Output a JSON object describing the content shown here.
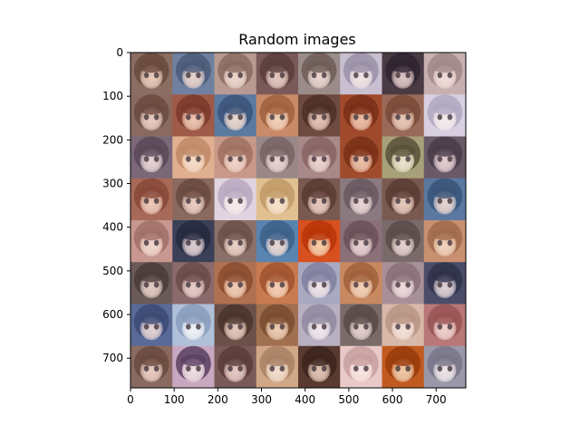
{
  "chart_data": {
    "type": "heatmap",
    "title": "Random images",
    "xlabel": "",
    "ylabel": "",
    "xlim": [
      0,
      768
    ],
    "ylim": [
      768,
      0
    ],
    "xticks": [
      0,
      100,
      200,
      300,
      400,
      500,
      600,
      700
    ],
    "yticks": [
      0,
      100,
      200,
      300,
      400,
      500,
      600,
      700
    ],
    "grid": false,
    "tile_size": 96,
    "rows": 8,
    "cols": 8,
    "tiles": [
      [
        {
          "bg": "#8a6e62",
          "hair": "#6a4a3e",
          "skin": "#e8c8b8"
        },
        {
          "bg": "#6f80a0",
          "hair": "#4c5a78",
          "skin": "#e6d2cc"
        },
        {
          "bg": "#b89a92",
          "hair": "#8a6a60",
          "skin": "#ecd6cc"
        },
        {
          "bg": "#7a5a58",
          "hair": "#5a3e3c",
          "skin": "#e4c8c0"
        },
        {
          "bg": "#9a8c88",
          "hair": "#6e5c58",
          "skin": "#e8d4cc"
        },
        {
          "bg": "#c8c0d0",
          "hair": "#9a90a8",
          "skin": "#f0e4e4"
        },
        {
          "bg": "#4a3a44",
          "hair": "#2e2430",
          "skin": "#dcc4c4"
        },
        {
          "bg": "#c8b0b0",
          "hair": "#a08888",
          "skin": "#f0dcd8"
        }
      ],
      [
        {
          "bg": "#8a6a60",
          "hair": "#6a4a40",
          "skin": "#e8ccc0"
        },
        {
          "bg": "#a05a48",
          "hair": "#7a3a2c",
          "skin": "#ecc4b0"
        },
        {
          "bg": "#5a7aa0",
          "hair": "#3c5478",
          "skin": "#ead8d0"
        },
        {
          "bg": "#c88a68",
          "hair": "#a0603e",
          "skin": "#f0d0b8"
        },
        {
          "bg": "#6e4a40",
          "hair": "#4e3028",
          "skin": "#e4c4b4"
        },
        {
          "bg": "#a04a2c",
          "hair": "#7a2e18",
          "skin": "#ecc0a8"
        },
        {
          "bg": "#9a6a58",
          "hair": "#7a4a3a",
          "skin": "#e8c8b8"
        },
        {
          "bg": "#d8d0e0",
          "hair": "#b0a8c0",
          "skin": "#f4ecec"
        }
      ],
      [
        {
          "bg": "#7a6878",
          "hair": "#5a4858",
          "skin": "#e6d2d2"
        },
        {
          "bg": "#e0b090",
          "hair": "#c08a68",
          "skin": "#f4dcc8"
        },
        {
          "bg": "#c89888",
          "hair": "#a07060",
          "skin": "#f0d4c8"
        },
        {
          "bg": "#9a8888",
          "hair": "#786464",
          "skin": "#e8d4d0"
        },
        {
          "bg": "#a88888",
          "hair": "#886464",
          "skin": "#ecd4d0"
        },
        {
          "bg": "#a04c2c",
          "hair": "#7a3018",
          "skin": "#ecc0a8"
        },
        {
          "bg": "#a8a078",
          "hair": "#58503a",
          "skin": "#ece4cc"
        },
        {
          "bg": "#6a5a68",
          "hair": "#4a3c4a",
          "skin": "#e2ccd0"
        }
      ],
      [
        {
          "bg": "#a86a58",
          "hair": "#884838",
          "skin": "#ecc8b8"
        },
        {
          "bg": "#8a6a60",
          "hair": "#6a4a40",
          "skin": "#e8ccc0"
        },
        {
          "bg": "#e0d4e0",
          "hair": "#b8a8c0",
          "skin": "#f6ecec"
        },
        {
          "bg": "#e0c090",
          "hair": "#c09a68",
          "skin": "#f6e2cc"
        },
        {
          "bg": "#7a5a50",
          "hair": "#5a3c34",
          "skin": "#e6c8bc"
        },
        {
          "bg": "#8a7a80",
          "hair": "#6a5860",
          "skin": "#e8d4d4"
        },
        {
          "bg": "#7a5a50",
          "hair": "#5a3c34",
          "skin": "#e6c8bc"
        },
        {
          "bg": "#5a78a0",
          "hair": "#3a5478",
          "skin": "#e6d4d0"
        }
      ],
      [
        {
          "bg": "#c89890",
          "hair": "#a07068",
          "skin": "#f0d6cc"
        },
        {
          "bg": "#3a4058",
          "hair": "#262a3e",
          "skin": "#dcccd0"
        },
        {
          "bg": "#8a7068",
          "hair": "#6a5048",
          "skin": "#e8d0c4"
        },
        {
          "bg": "#5a84b0",
          "hair": "#3c6088",
          "skin": "#e6d8d4"
        },
        {
          "bg": "#d85020",
          "hair": "#b83408",
          "skin": "#f4cca8"
        },
        {
          "bg": "#8a7078",
          "hair": "#6a5058",
          "skin": "#e6d0d0"
        },
        {
          "bg": "#7a6a6a",
          "hair": "#5a4a4a",
          "skin": "#e4d0cc"
        },
        {
          "bg": "#c89070",
          "hair": "#a06a4c",
          "skin": "#f0d2bc"
        }
      ],
      [
        {
          "bg": "#6a5a58",
          "hair": "#4a3c3a",
          "skin": "#e2ccc4"
        },
        {
          "bg": "#8a6a6a",
          "hair": "#6a4a4a",
          "skin": "#e8ccc8"
        },
        {
          "bg": "#b07050",
          "hair": "#8a4c30",
          "skin": "#f0ccb4"
        },
        {
          "bg": "#c87a50",
          "hair": "#a05430",
          "skin": "#f2ceb4"
        },
        {
          "bg": "#a8a8c0",
          "hair": "#8080a0",
          "skin": "#eee4e8"
        },
        {
          "bg": "#c88860",
          "hair": "#a0623c",
          "skin": "#f2d0b8"
        },
        {
          "bg": "#a89098",
          "hair": "#887078",
          "skin": "#ecdadc"
        },
        {
          "bg": "#4a4c68",
          "hair": "#30324a",
          "skin": "#dcd0d4"
        }
      ],
      [
        {
          "bg": "#5a6a98",
          "hair": "#3c4a74",
          "skin": "#e2d2d4"
        },
        {
          "bg": "#b0c0d8",
          "hair": "#8a9cbc",
          "skin": "#eef0f4"
        },
        {
          "bg": "#6a5048",
          "hair": "#4a342c",
          "skin": "#e4c8bc"
        },
        {
          "bg": "#a07050",
          "hair": "#7a4c30",
          "skin": "#ecccb4"
        },
        {
          "bg": "#b8b0c0",
          "hair": "#908aa0",
          "skin": "#f0e8ec"
        },
        {
          "bg": "#7a6a68",
          "hair": "#5a4a48",
          "skin": "#e4d0cc"
        },
        {
          "bg": "#d8b8a8",
          "hair": "#b89484",
          "skin": "#f4e0d8"
        },
        {
          "bg": "#b87878",
          "hair": "#985454",
          "skin": "#f0d0cc"
        }
      ],
      [
        {
          "bg": "#8a6a60",
          "hair": "#6a4a40",
          "skin": "#e8ccc0"
        },
        {
          "bg": "#c8a8c0",
          "hair": "#5a4060",
          "skin": "#f0e0e4"
        },
        {
          "bg": "#7a5a58",
          "hair": "#5a3c3a",
          "skin": "#e6c8c4"
        },
        {
          "bg": "#d0a888",
          "hair": "#a88064",
          "skin": "#f2dccc"
        },
        {
          "bg": "#5a3a30",
          "hair": "#3c241c",
          "skin": "#e0c4b4"
        },
        {
          "bg": "#e8c8c8",
          "hair": "#c8a0a0",
          "skin": "#f8e4e0"
        },
        {
          "bg": "#c05a20",
          "hair": "#983c0c",
          "skin": "#f0c8a8"
        },
        {
          "bg": "#9a98a8",
          "hair": "#787688",
          "skin": "#ece4e8"
        }
      ]
    ]
  }
}
